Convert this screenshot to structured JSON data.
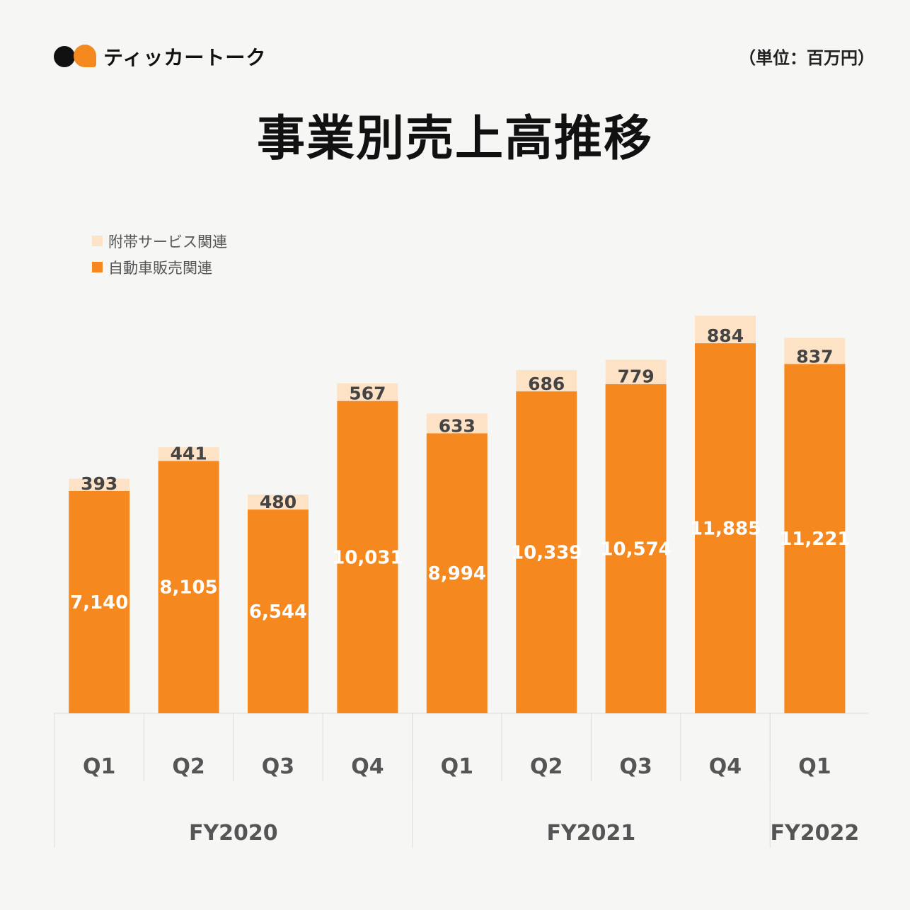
{
  "brand": {
    "name": "ティッカートーク"
  },
  "unit_label": "（単位：百万円）",
  "colors": {
    "vehicle": "#f5891f",
    "service": "#fde2c6",
    "axis": "#d8d8d8",
    "text": "#555555"
  },
  "chart_data": {
    "type": "bar",
    "stacked": true,
    "title": "事業別売上高推移",
    "categories": [
      "Q1",
      "Q2",
      "Q3",
      "Q4",
      "Q1",
      "Q2",
      "Q3",
      "Q4",
      "Q1"
    ],
    "groups": [
      {
        "label": "FY2020",
        "span": 4
      },
      {
        "label": "FY2021",
        "span": 4
      },
      {
        "label": "FY2022",
        "span": 1
      }
    ],
    "series": [
      {
        "name": "自動車販売関連",
        "values": [
          7140,
          8105,
          6544,
          10031,
          8994,
          10339,
          10574,
          11885,
          11221
        ],
        "labels": [
          "7,140",
          "8,105",
          "6,544",
          "10,031",
          "8,994",
          "10,339",
          "10,574",
          "11,885",
          "11,221"
        ]
      },
      {
        "name": "附帯サービス関連",
        "values": [
          393,
          441,
          480,
          567,
          633,
          686,
          779,
          884,
          837
        ],
        "labels": [
          "393",
          "441",
          "480",
          "567",
          "633",
          "686",
          "779",
          "884",
          "837"
        ]
      }
    ],
    "legend": "top-left",
    "ylim": [
      0,
      13000
    ],
    "grid": false
  }
}
